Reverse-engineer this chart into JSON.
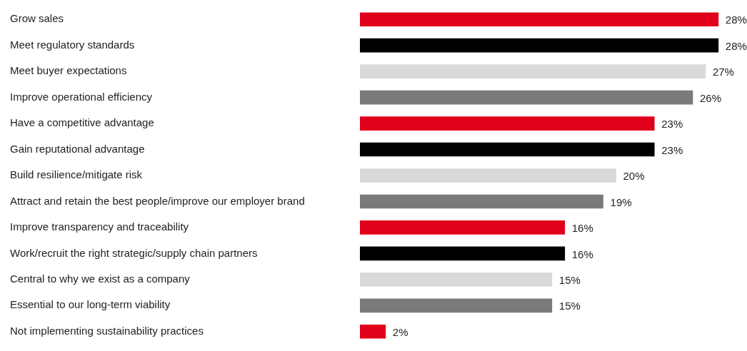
{
  "chart_data": {
    "type": "bar",
    "orientation": "horizontal",
    "categories": [
      "Grow sales",
      "Meet regulatory standards",
      "Meet buyer expectations",
      "Improve operational efficiency",
      "Have a competitive advantage",
      "Gain reputational advantage",
      "Build resilience/mitigate risk",
      "Attract and retain the best people/improve our employer brand",
      "Improve transparency and traceability",
      "Work/recruit the right strategic/supply chain partners",
      "Central to why we exist as a company",
      "Essential to our long-term viability",
      "Not implementing sustainability practices"
    ],
    "values": [
      28,
      28,
      27,
      26,
      23,
      23,
      20,
      19,
      16,
      16,
      15,
      15,
      2
    ],
    "value_labels": [
      "28%",
      "28%",
      "27%",
      "26%",
      "23%",
      "23%",
      "20%",
      "19%",
      "16%",
      "16%",
      "15%",
      "15%",
      "2%"
    ],
    "colors": [
      "#e0001b",
      "#000000",
      "#d9d9d9",
      "#7a7a7a",
      "#e0001b",
      "#000000",
      "#d9d9d9",
      "#7a7a7a",
      "#e0001b",
      "#000000",
      "#d9d9d9",
      "#7a7a7a",
      "#e0001b"
    ],
    "grid": false,
    "legend": false
  }
}
